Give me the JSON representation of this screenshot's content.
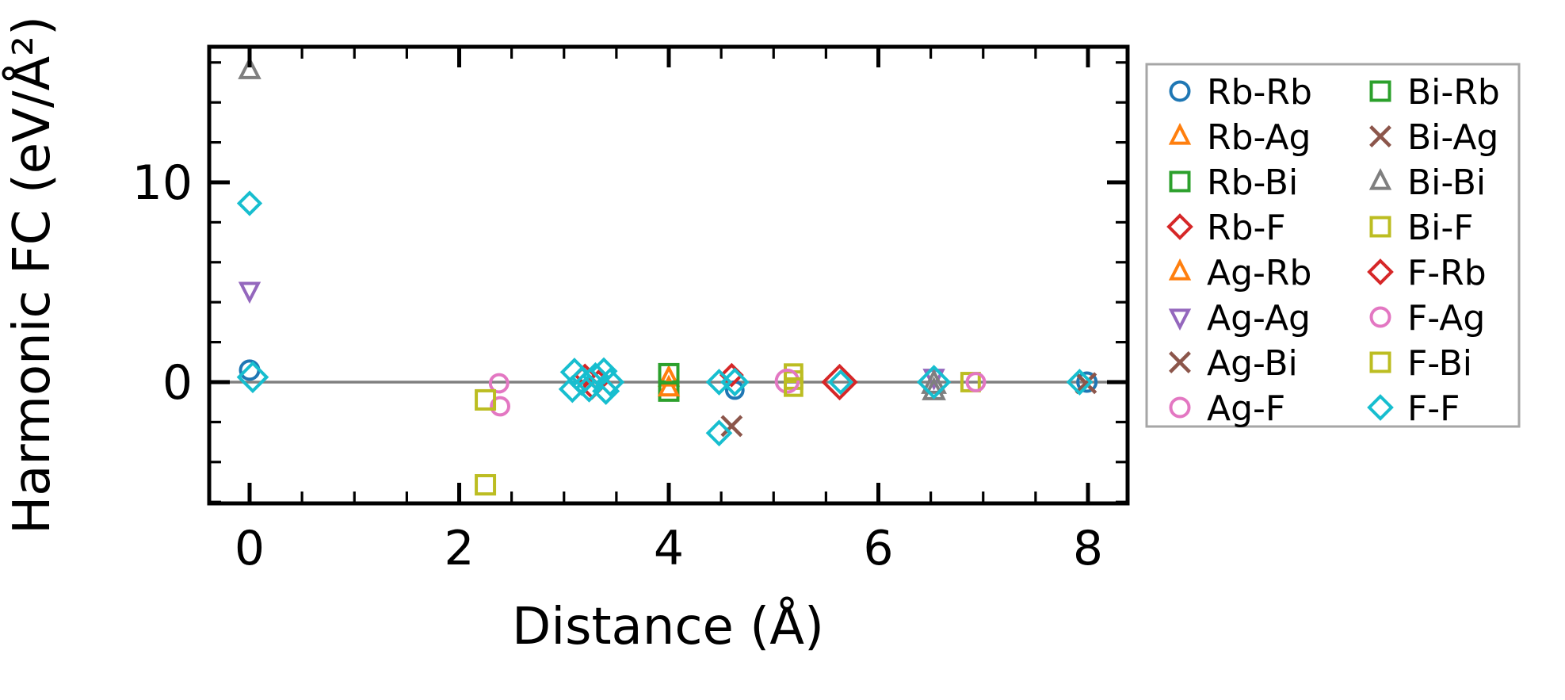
{
  "figure": {
    "background": "#ffffff",
    "spine_color": "#000000",
    "zero_line_color": "#808080",
    "legend_border_color": "#a6a6a6"
  },
  "chart_data": {
    "type": "scatter",
    "title": "",
    "xlabel": "Distance (Å)",
    "ylabel": "Harmonic FC (eV/Å²)",
    "xlim": [
      -0.39,
      8.38
    ],
    "ylim": [
      -6.07,
      16.79
    ],
    "grid": false,
    "legend_position": "outside-right",
    "x_major_ticks": [
      {
        "value": 0,
        "label": "0"
      },
      {
        "value": 2,
        "label": "2"
      },
      {
        "value": 4,
        "label": "4"
      },
      {
        "value": 6,
        "label": "6"
      },
      {
        "value": 8,
        "label": "8"
      }
    ],
    "x_minor_ticks": [
      0.5,
      1.0,
      1.5,
      2.5,
      3.0,
      3.5,
      4.5,
      5.0,
      5.5,
      6.5,
      7.0,
      7.5
    ],
    "y_major_ticks": [
      {
        "value": 0,
        "label": "0"
      },
      {
        "value": 10,
        "label": "10"
      }
    ],
    "y_minor_ticks": [
      -6,
      -4,
      -2,
      2,
      4,
      6,
      8,
      12,
      14,
      16
    ],
    "zero_line_y": 0,
    "series": [
      {
        "name": "Rb-Rb",
        "marker": "circle",
        "color": "#1f77b4",
        "points": [
          [
            0,
            0.6,
            1
          ],
          [
            4.63,
            -0.4,
            0.9
          ],
          [
            7.99,
            0,
            1
          ]
        ]
      },
      {
        "name": "Rb-Ag",
        "marker": "triangle-up",
        "color": "#ff7f0e",
        "points": [
          [
            4.0,
            0.2,
            1
          ]
        ]
      },
      {
        "name": "Rb-Bi",
        "marker": "square",
        "color": "#2ca02c",
        "points": [
          [
            4.0,
            -0.45,
            1
          ]
        ]
      },
      {
        "name": "Rb-F",
        "marker": "diamond",
        "color": "#d62728",
        "points": [
          [
            3.2,
            0.35,
            0.85
          ],
          [
            3.27,
            -0.3,
            0.85
          ],
          [
            4.6,
            0.35,
            0.9
          ],
          [
            5.63,
            0,
            1.45
          ]
        ]
      },
      {
        "name": "Ag-Rb",
        "marker": "triangle-up",
        "color": "#ff7f0e",
        "points": [
          [
            4.0,
            -0.3,
            1
          ]
        ]
      },
      {
        "name": "Ag-Ag",
        "marker": "triangle-down",
        "color": "#9467bd",
        "points": [
          [
            0,
            4.6,
            1
          ],
          [
            6.53,
            0.25,
            1
          ]
        ]
      },
      {
        "name": "Ag-Bi",
        "marker": "x",
        "color": "#8c564b",
        "points": [
          [
            4.6,
            -2.2,
            1
          ]
        ]
      },
      {
        "name": "Ag-F",
        "marker": "circle",
        "color": "#e377c2",
        "points": [
          [
            2.38,
            -0.06,
            0.95
          ],
          [
            2.39,
            -1.21,
            0.95
          ]
        ]
      },
      {
        "name": "Bi-Rb",
        "marker": "square",
        "color": "#2ca02c",
        "points": [
          [
            4.0,
            0.42,
            1
          ]
        ]
      },
      {
        "name": "Bi-Ag",
        "marker": "x",
        "color": "#8c564b",
        "points": [
          [
            7.98,
            -0.05,
            1
          ]
        ]
      },
      {
        "name": "Bi-Bi",
        "marker": "triangle-up",
        "color": "#7f7f7f",
        "points": [
          [
            0,
            15.6,
            1.05
          ],
          [
            6.53,
            -0.1,
            1.2
          ],
          [
            6.53,
            -0.45,
            1.1
          ]
        ]
      },
      {
        "name": "Bi-F",
        "marker": "square",
        "color": "#bcbd22",
        "points": [
          [
            2.25,
            -0.89,
            1
          ],
          [
            2.25,
            -5.14,
            1
          ],
          [
            5.19,
            0.45,
            0.9
          ],
          [
            5.19,
            0.1,
            0.9
          ],
          [
            6.88,
            0,
            0.95
          ]
        ]
      },
      {
        "name": "F-Rb",
        "marker": "diamond",
        "color": "#d62728",
        "points": [
          [
            3.33,
            0.05,
            0.85
          ]
        ]
      },
      {
        "name": "F-Ag",
        "marker": "circle",
        "color": "#e377c2",
        "points": [
          [
            5.13,
            0.05,
            1.2
          ],
          [
            6.93,
            0,
            0.95
          ]
        ]
      },
      {
        "name": "F-Bi",
        "marker": "square",
        "color": "#bcbd22",
        "points": [
          [
            5.19,
            -0.25,
            0.9
          ]
        ]
      },
      {
        "name": "F-F",
        "marker": "diamond",
        "color": "#17becf",
        "points": [
          [
            0,
            8.95,
            0.95
          ],
          [
            0.03,
            0.25,
            1.25
          ],
          [
            3.1,
            0.5,
            1.1
          ],
          [
            3.08,
            -0.35,
            1.05
          ],
          [
            3.17,
            0.05,
            1.15
          ],
          [
            3.24,
            -0.3,
            1.1
          ],
          [
            3.3,
            0.3,
            1.05
          ],
          [
            3.38,
            0.55,
            1.05
          ],
          [
            3.4,
            -0.45,
            1.05
          ],
          [
            3.44,
            0,
            1.1
          ],
          [
            4.48,
            0,
            1.0
          ],
          [
            4.63,
            0,
            1.1
          ],
          [
            4.48,
            -2.55,
            1.0
          ],
          [
            5.64,
            0,
            0.95
          ],
          [
            6.53,
            0,
            1.35
          ],
          [
            7.92,
            0,
            1.0
          ]
        ]
      }
    ]
  },
  "legend": {
    "columns": 2,
    "rows_per_column": 8,
    "items": [
      {
        "label": "Rb-Rb"
      },
      {
        "label": "Rb-Ag"
      },
      {
        "label": "Rb-Bi"
      },
      {
        "label": "Rb-F"
      },
      {
        "label": "Ag-Rb"
      },
      {
        "label": "Ag-Ag"
      },
      {
        "label": "Ag-Bi"
      },
      {
        "label": "Ag-F"
      },
      {
        "label": "Bi-Rb"
      },
      {
        "label": "Bi-Ag"
      },
      {
        "label": "Bi-Bi"
      },
      {
        "label": "Bi-F"
      },
      {
        "label": "F-Rb"
      },
      {
        "label": "F-Ag"
      },
      {
        "label": "F-Bi"
      },
      {
        "label": "F-F"
      }
    ]
  }
}
